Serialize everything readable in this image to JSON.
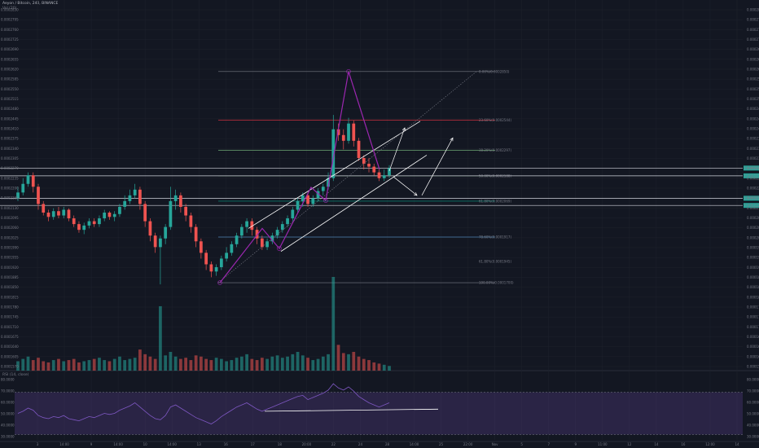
{
  "header": {
    "symbol": "Aeyon / Bitcoin, 240, BINANCE",
    "volume_label": "Vol (20)"
  },
  "rsi_label": "RSI (14, close)",
  "chart_data": {
    "type": "candlestick",
    "price_axis_ticks": [
      "0.0002830",
      "0.0002795",
      "0.0002760",
      "0.0002725",
      "0.0002690",
      "0.0002655",
      "0.0002620",
      "0.0002585",
      "0.0002550",
      "0.0002515",
      "0.0002480",
      "0.0002445",
      "0.0002410",
      "0.0002375",
      "0.0002340",
      "0.0002305",
      "0.0002270",
      "0.0002235",
      "0.0002200",
      "0.0002165",
      "0.0002130",
      "0.0002095",
      "0.0002060",
      "0.0002025",
      "0.0001990",
      "0.0001955",
      "0.0001920",
      "0.0001885",
      "0.0001850",
      "0.0001815",
      "0.0001780",
      "0.0001745",
      "0.0001710",
      "0.0001675",
      "0.0001640",
      "0.0001605",
      "0.0001570"
    ],
    "ylim": [
      0.000156,
      0.000285
    ],
    "rsi_ticks": [
      "80.0000",
      "70.0000",
      "60.0000",
      "50.0000",
      "40.0000",
      "30.0000"
    ],
    "rsi_ylim": [
      25,
      85
    ],
    "x_ticks": [
      "3",
      "14:00",
      "9",
      "14:00",
      "10",
      "14:00",
      "13",
      "16",
      "17",
      "18",
      "20:00",
      "22",
      "24",
      "28",
      "14:00",
      "25",
      "22:00",
      "Nov",
      "5",
      "7",
      "9",
      "11:00",
      "12",
      "14",
      "16",
      "12:00",
      "14"
    ],
    "fib_levels": [
      {
        "label": "0.00%(0.0002850)",
        "price": 0.0002601
      },
      {
        "label": "23.60%(0.0002544)",
        "price": 0.0002432
      },
      {
        "label": "38.20%(0.0002297)",
        "price": 0.0002327
      },
      {
        "label": "50.00%(0.0002188)",
        "price": 0.0002238
      },
      {
        "label": "61.80%(0.0002069)",
        "price": 0.000215
      },
      {
        "label": "78.60%(0.0001917)",
        "price": 0.0002025
      },
      {
        "label": "100.00%(0.0001700)",
        "price": 0.0001866
      }
    ],
    "fib_extra": {
      "label": "61.80%(0.0001945)",
      "price": 0.000194
    },
    "price_labels": [
      {
        "text": "0.0002260",
        "price": 0.0002265,
        "color": "#26a69a"
      },
      {
        "text": "0.0002230",
        "price": 0.0002238,
        "color": "#26a69a"
      },
      {
        "text": "0.0002151",
        "price": 0.000216,
        "color": "#26a69a"
      },
      {
        "text": "0.0002127",
        "price": 0.0002135,
        "color": "#26a69a"
      }
    ],
    "candles": [
      [
        0.000216,
        0.000218,
        0.00022,
        0.000215
      ],
      [
        0.000218,
        0.000221,
        0.000223,
        0.000217
      ],
      [
        0.000221,
        0.000224,
        0.000225,
        0.00022
      ],
      [
        0.000224,
        0.00022,
        0.000225,
        0.000218
      ],
      [
        0.00022,
        0.000214,
        0.000221,
        0.000212
      ],
      [
        0.000214,
        0.000211,
        0.000215,
        0.00021
      ],
      [
        0.000211,
        0.0002095,
        0.000212,
        0.000208
      ],
      [
        0.0002095,
        0.0002115,
        0.0002125,
        0.0002085
      ],
      [
        0.0002115,
        0.00021,
        0.000213,
        0.000209
      ],
      [
        0.00021,
        0.000212,
        0.000213,
        0.000209
      ],
      [
        0.000212,
        0.000209,
        0.0002125,
        0.000208
      ],
      [
        0.000209,
        0.000207,
        0.00021,
        0.000206
      ],
      [
        0.000207,
        0.000205,
        0.000208,
        0.000204
      ],
      [
        0.000205,
        0.0002065,
        0.0002075,
        0.0002035
      ],
      [
        0.0002065,
        0.000208,
        0.000209,
        0.0002055
      ],
      [
        0.000208,
        0.000207,
        0.000209,
        0.000206
      ],
      [
        0.000207,
        0.000209,
        0.00021,
        0.000206
      ],
      [
        0.000209,
        0.000211,
        0.000212,
        0.000208
      ],
      [
        0.000211,
        0.0002095,
        0.0002115,
        0.0002085
      ],
      [
        0.0002095,
        0.0002105,
        0.0002115,
        0.000208
      ],
      [
        0.0002105,
        0.000213,
        0.000214,
        0.0002095
      ],
      [
        0.000213,
        0.000215,
        0.000217,
        0.000212
      ],
      [
        0.000215,
        0.000217,
        0.000219,
        0.000214
      ],
      [
        0.000217,
        0.000219,
        0.000221,
        0.000216
      ],
      [
        0.000219,
        0.000214,
        0.00022,
        0.000212
      ],
      [
        0.000214,
        0.000208,
        0.000215,
        0.000206
      ],
      [
        0.000208,
        0.000203,
        0.000209,
        0.000201
      ],
      [
        0.000203,
        0.000199,
        0.000204,
        0.000197
      ],
      [
        0.000199,
        0.000202,
        0.000203,
        0.000186
      ],
      [
        0.000202,
        0.000206,
        0.000207,
        0.0002
      ],
      [
        0.000206,
        0.000215,
        0.00022,
        0.000205
      ],
      [
        0.000215,
        0.000217,
        0.000219,
        0.000212
      ],
      [
        0.000217,
        0.000213,
        0.000218,
        0.000211
      ],
      [
        0.000213,
        0.00021,
        0.000214,
        0.000208
      ],
      [
        0.00021,
        0.000206,
        0.000211,
        0.000204
      ],
      [
        0.000206,
        0.000201,
        0.000207,
        0.000199
      ],
      [
        0.000201,
        0.000197,
        0.000202,
        0.000195
      ],
      [
        0.000197,
        0.000193,
        0.000198,
        0.000191
      ],
      [
        0.000193,
        0.0001905,
        0.000194,
        0.0001885
      ],
      [
        0.0001905,
        0.000192,
        0.000193,
        0.000189
      ],
      [
        0.000192,
        0.000195,
        0.000196,
        0.000191
      ],
      [
        0.000195,
        0.000197,
        0.000199,
        0.000194
      ],
      [
        0.000197,
        0.0002,
        0.000201,
        0.000196
      ],
      [
        0.0002,
        0.000203,
        0.000204,
        0.000199
      ],
      [
        0.000203,
        0.000206,
        0.000207,
        0.000202
      ],
      [
        0.000206,
        0.000208,
        0.000209,
        0.000204
      ],
      [
        0.000208,
        0.000205,
        0.000209,
        0.000203
      ],
      [
        0.000205,
        0.000202,
        0.000206,
        0.0002
      ],
      [
        0.000202,
        0.000199,
        0.000203,
        0.000198
      ],
      [
        0.000199,
        0.000201,
        0.000202,
        0.000198
      ],
      [
        0.000201,
        0.000203,
        0.000204,
        0.0002
      ],
      [
        0.000203,
        0.000205,
        0.000206,
        0.000202
      ],
      [
        0.000205,
        0.000207,
        0.000208,
        0.000204
      ],
      [
        0.000207,
        0.000209,
        0.00021,
        0.000206
      ],
      [
        0.000209,
        0.000212,
        0.000213,
        0.000208
      ],
      [
        0.000212,
        0.000215,
        0.000216,
        0.000211
      ],
      [
        0.000215,
        0.000217,
        0.000218,
        0.000213
      ],
      [
        0.000217,
        0.000214,
        0.000218,
        0.000213
      ],
      [
        0.000214,
        0.000216,
        0.000217,
        0.000213
      ],
      [
        0.000216,
        0.0002185,
        0.0002195,
        0.000215
      ],
      [
        0.0002185,
        0.00022,
        0.000221,
        0.000217
      ],
      [
        0.00022,
        0.000223,
        0.000225,
        0.000219
      ],
      [
        0.000223,
        0.00024,
        0.000245,
        0.000222
      ],
      [
        0.00024,
        0.000238,
        0.000242,
        0.000236
      ],
      [
        0.000238,
        0.000236,
        0.00024,
        0.000233
      ],
      [
        0.000236,
        0.000242,
        0.000244,
        0.000235
      ],
      [
        0.000242,
        0.000236,
        0.000243,
        0.000234
      ],
      [
        0.000236,
        0.00023,
        0.000237,
        0.000229
      ],
      [
        0.00023,
        0.000228,
        0.000231,
        0.000226
      ],
      [
        0.000228,
        0.000227,
        0.00023,
        0.000225
      ],
      [
        0.000227,
        0.000225,
        0.000228,
        0.000224
      ],
      [
        0.000225,
        0.000223,
        0.000226,
        0.000222
      ],
      [
        0.000223,
        0.000224,
        0.000226,
        0.000222
      ],
      [
        0.000224,
        0.0002265,
        0.0002275,
        0.000223
      ]
    ],
    "volume": [
      8,
      10,
      12,
      9,
      11,
      8,
      7,
      9,
      10,
      8,
      9,
      10,
      7,
      8,
      9,
      10,
      11,
      9,
      8,
      10,
      12,
      9,
      10,
      11,
      18,
      14,
      12,
      10,
      55,
      13,
      16,
      12,
      10,
      11,
      9,
      13,
      12,
      10,
      9,
      11,
      10,
      8,
      9,
      11,
      12,
      14,
      10,
      9,
      11,
      10,
      12,
      13,
      11,
      12,
      14,
      16,
      13,
      11,
      9,
      10,
      12,
      14,
      80,
      22,
      15,
      14,
      16,
      12,
      10,
      9,
      7,
      6,
      5,
      4
    ],
    "rsi": [
      50,
      52,
      55,
      53,
      48,
      46,
      45,
      47,
      46,
      48,
      45,
      44,
      43,
      45,
      47,
      46,
      48,
      50,
      49,
      50,
      53,
      55,
      57,
      60,
      56,
      52,
      48,
      45,
      44,
      48,
      56,
      58,
      55,
      52,
      49,
      46,
      44,
      42,
      40,
      43,
      47,
      50,
      53,
      56,
      58,
      60,
      57,
      54,
      52,
      54,
      56,
      58,
      60,
      62,
      64,
      66,
      67,
      63,
      65,
      67,
      69,
      72,
      78,
      74,
      72,
      75,
      71,
      66,
      63,
      60,
      58,
      56,
      58,
      60
    ]
  }
}
